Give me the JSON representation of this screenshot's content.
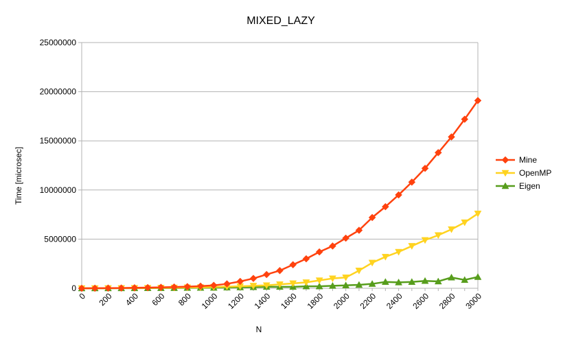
{
  "chart_data": {
    "type": "line",
    "title": "MIXED_LAZY",
    "xlabel": "N",
    "ylabel": "Time [microsec]",
    "x": [
      0,
      100,
      200,
      300,
      400,
      500,
      600,
      700,
      800,
      900,
      1000,
      1100,
      1200,
      1300,
      1400,
      1500,
      1600,
      1700,
      1800,
      1900,
      2000,
      2100,
      2200,
      2300,
      2400,
      2500,
      2600,
      2700,
      2800,
      2900,
      3000
    ],
    "x_tick_labels": [
      "0",
      "200",
      "400",
      "600",
      "800",
      "1000",
      "1200",
      "1400",
      "1600",
      "1800",
      "2000",
      "2200",
      "2400",
      "2600",
      "2800",
      "3000"
    ],
    "ylim": [
      0,
      25000000
    ],
    "y_tick_labels": [
      "0",
      "5000000",
      "10000000",
      "15000000",
      "20000000",
      "25000000"
    ],
    "grid": "horizontal",
    "legend_position": "right",
    "series": [
      {
        "name": "Mine",
        "color": "#ff420e",
        "marker": "diamond",
        "values": [
          0,
          5000,
          20000,
          30000,
          50000,
          70000,
          100000,
          130000,
          170000,
          220000,
          300000,
          450000,
          700000,
          1000000,
          1400000,
          1800000,
          2400000,
          3000000,
          3700000,
          4300000,
          5100000,
          5900000,
          7200000,
          8300000,
          9500000,
          10800000,
          12200000,
          13800000,
          15400000,
          17200000,
          19100000
        ]
      },
      {
        "name": "OpenMP",
        "color": "#ffd320",
        "marker": "triangle-down",
        "values": [
          0,
          3000,
          8000,
          15000,
          25000,
          35000,
          50000,
          65000,
          85000,
          100000,
          130000,
          170000,
          200000,
          250000,
          300000,
          400000,
          500000,
          600000,
          800000,
          1000000,
          1100000,
          1800000,
          2600000,
          3200000,
          3700000,
          4300000,
          4900000,
          5400000,
          6000000,
          6700000,
          7600000
        ]
      },
      {
        "name": "Eigen",
        "color": "#579d1c",
        "marker": "triangle-up",
        "values": [
          0,
          2000,
          4000,
          8000,
          12000,
          18000,
          25000,
          30000,
          40000,
          50000,
          60000,
          80000,
          100000,
          120000,
          150000,
          150000,
          150000,
          200000,
          200000,
          250000,
          300000,
          350000,
          450000,
          650000,
          600000,
          650000,
          750000,
          700000,
          1100000,
          850000,
          1150000
        ]
      }
    ]
  }
}
